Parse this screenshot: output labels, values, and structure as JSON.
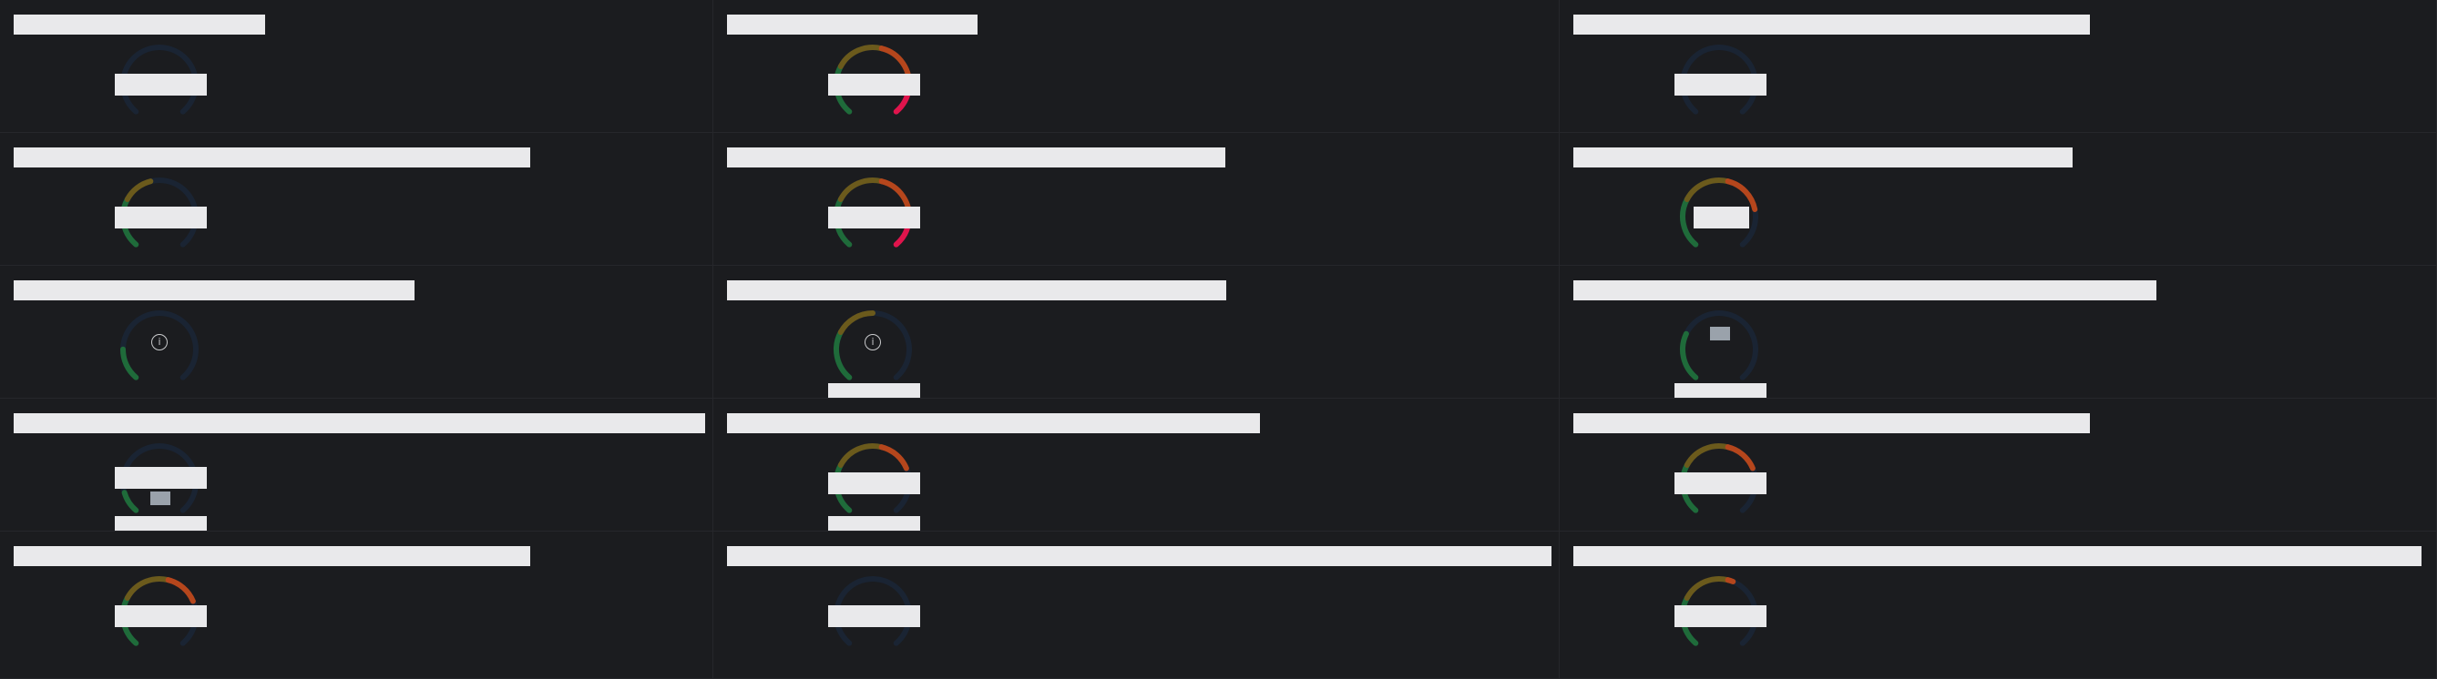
{
  "dashboard": {
    "panels": [
      {
        "id": "p1",
        "gauge": {
          "level": 0.0,
          "state": "empty"
        }
      },
      {
        "id": "p2",
        "gauge": {
          "level": 1.0,
          "state": "value"
        }
      },
      {
        "id": "p3",
        "gauge": {
          "level": 0.0,
          "state": "empty"
        }
      },
      {
        "id": "p4",
        "gauge": {
          "level": 0.45,
          "state": "value"
        }
      },
      {
        "id": "p5",
        "gauge": {
          "level": 1.0,
          "state": "value"
        }
      },
      {
        "id": "p6",
        "gauge": {
          "level": 0.78,
          "state": "value"
        }
      },
      {
        "id": "p7",
        "gauge": {
          "level": 0.18,
          "state": "info"
        }
      },
      {
        "id": "p8",
        "gauge": {
          "level": 0.5,
          "state": "info"
        }
      },
      {
        "id": "p9",
        "gauge": {
          "level": 0.27,
          "state": "loading"
        }
      },
      {
        "id": "p10",
        "gauge": {
          "level": 0.12,
          "state": "loading"
        }
      },
      {
        "id": "p11",
        "gauge": {
          "level": 0.74,
          "state": "value"
        }
      },
      {
        "id": "p12",
        "gauge": {
          "level": 0.74,
          "state": "value"
        }
      },
      {
        "id": "p13",
        "gauge": {
          "level": 0.74,
          "state": "value"
        }
      },
      {
        "id": "p14",
        "gauge": {
          "level": 0.0,
          "state": "empty"
        }
      },
      {
        "id": "p15",
        "gauge": {
          "level": 0.58,
          "state": "value"
        }
      }
    ],
    "colors": {
      "background": "#1b1c1f",
      "track": "#1a2433",
      "gauge_green": "#1f6b3a",
      "gauge_olive": "#6b5a1c",
      "gauge_orange": "#b5461c",
      "gauge_red": "#e0144c",
      "redacted_text": "#e9e9eb"
    },
    "icons": {
      "info": "info-circle-icon"
    }
  }
}
